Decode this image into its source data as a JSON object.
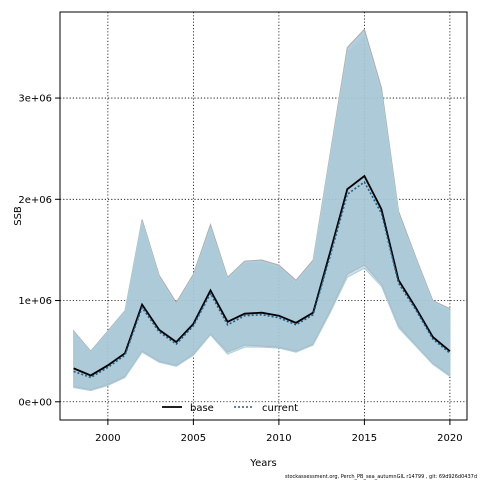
{
  "chart_data": {
    "type": "area",
    "xlabel": "Years",
    "ylabel": "SSB",
    "xlim": [
      1997.2,
      2021.0
    ],
    "ylim": [
      -180000,
      3850000
    ],
    "x_ticks": [
      2000,
      2005,
      2010,
      2015,
      2020
    ],
    "y_ticks": [
      0,
      1000000,
      2000000,
      3000000
    ],
    "y_tick_labels": [
      "0e+00",
      "1e+06",
      "2e+06",
      "3e+06"
    ],
    "grid": true,
    "legend_position": "bottom",
    "footnote": "stockassessment.org, Perch_PB_sea_autumnGIL r14799 , git: 69d926d0437d",
    "colors": {
      "band_fill": "#a6c6d6",
      "band_edge_base": "#b3a9a9",
      "band_edge_current": "#a9d0df",
      "base_line": "#000000",
      "current_line": "#1f5f8b"
    },
    "x": [
      1998,
      1999,
      2000,
      2001,
      2002,
      2003,
      2004,
      2005,
      2006,
      2007,
      2008,
      2009,
      2010,
      2011,
      2012,
      2013,
      2014,
      2015,
      2016,
      2017,
      2018,
      2019,
      2020
    ],
    "series": [
      {
        "name": "base",
        "style": "solid",
        "values": [
          330000,
          260000,
          360000,
          480000,
          960000,
          710000,
          590000,
          770000,
          1100000,
          790000,
          870000,
          880000,
          850000,
          780000,
          880000,
          1480000,
          2100000,
          2230000,
          1900000,
          1200000,
          930000,
          640000,
          500000
        ],
        "lower": [
          150000,
          120000,
          170000,
          250000,
          500000,
          400000,
          360000,
          470000,
          670000,
          490000,
          560000,
          550000,
          540000,
          500000,
          570000,
          900000,
          1260000,
          1350000,
          1160000,
          750000,
          560000,
          380000,
          260000
        ],
        "upper": [
          700000,
          500000,
          700000,
          900000,
          1800000,
          1250000,
          980000,
          1260000,
          1750000,
          1230000,
          1390000,
          1400000,
          1350000,
          1200000,
          1400000,
          2450000,
          3500000,
          3680000,
          3100000,
          1880000,
          1430000,
          1000000,
          920000
        ]
      },
      {
        "name": "current",
        "style": "dotted",
        "values": [
          300000,
          240000,
          340000,
          460000,
          930000,
          690000,
          570000,
          750000,
          1070000,
          760000,
          850000,
          860000,
          830000,
          760000,
          860000,
          1440000,
          2050000,
          2170000,
          1860000,
          1170000,
          910000,
          620000,
          480000
        ],
        "lower": [
          140000,
          110000,
          160000,
          240000,
          490000,
          390000,
          350000,
          460000,
          660000,
          470000,
          540000,
          540000,
          530000,
          490000,
          560000,
          880000,
          1230000,
          1320000,
          1140000,
          730000,
          550000,
          370000,
          250000
        ],
        "upper": [
          690000,
          490000,
          690000,
          890000,
          1780000,
          1230000,
          960000,
          1240000,
          1720000,
          1210000,
          1370000,
          1380000,
          1330000,
          1180000,
          1380000,
          2420000,
          3450000,
          3620000,
          3050000,
          1850000,
          1410000,
          980000,
          900000
        ]
      }
    ]
  }
}
